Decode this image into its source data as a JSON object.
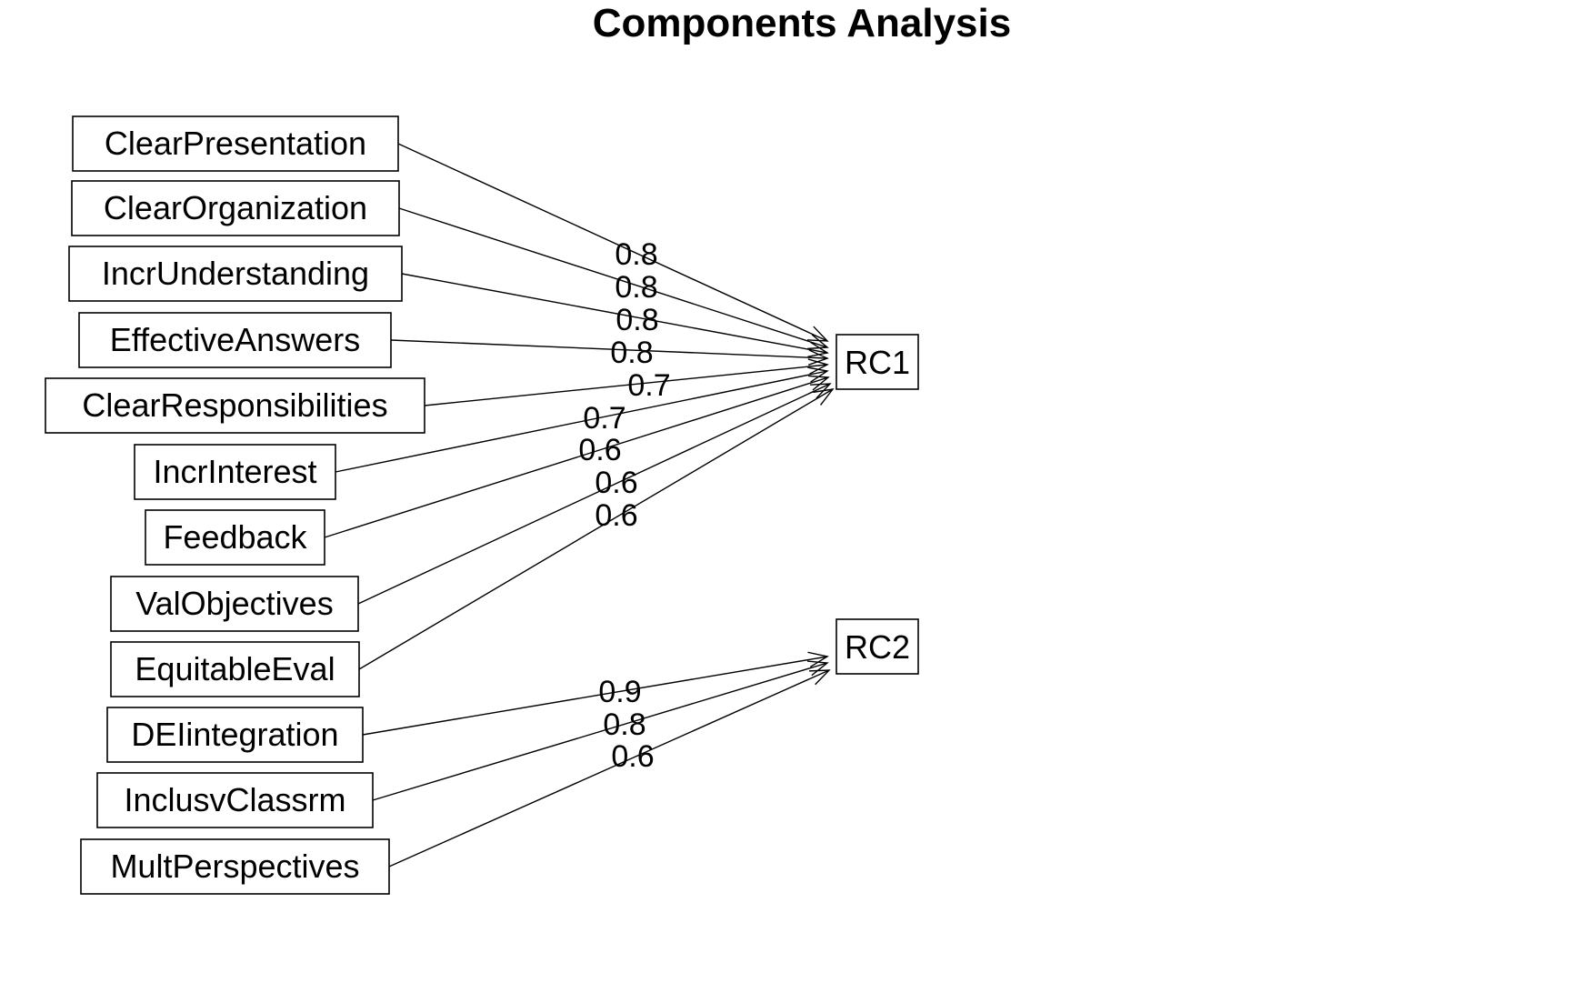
{
  "title": "Components Analysis",
  "colors": {
    "background": "#ffffff",
    "ink": "#000000"
  },
  "components": [
    {
      "id": "RC1",
      "label": "RC1"
    },
    {
      "id": "RC2",
      "label": "RC2"
    }
  ],
  "variables": [
    {
      "id": "ClearPresentation",
      "label": "ClearPresentation"
    },
    {
      "id": "ClearOrganization",
      "label": "ClearOrganization"
    },
    {
      "id": "IncrUnderstanding",
      "label": "IncrUnderstanding"
    },
    {
      "id": "EffectiveAnswers",
      "label": "EffectiveAnswers"
    },
    {
      "id": "ClearResponsibilities",
      "label": "ClearResponsibilities"
    },
    {
      "id": "IncrInterest",
      "label": "IncrInterest"
    },
    {
      "id": "Feedback",
      "label": "Feedback"
    },
    {
      "id": "ValObjectives",
      "label": "ValObjectives"
    },
    {
      "id": "EquitableEval",
      "label": "EquitableEval"
    },
    {
      "id": "DEIintegration",
      "label": "DEIintegration"
    },
    {
      "id": "InclusvClassrm",
      "label": "InclusvClassrm"
    },
    {
      "id": "MultPerspectives",
      "label": "MultPerspectives"
    }
  ],
  "loadings": [
    {
      "from": "ClearPresentation",
      "to": "RC1",
      "value": "0.8"
    },
    {
      "from": "ClearOrganization",
      "to": "RC1",
      "value": "0.8"
    },
    {
      "from": "IncrUnderstanding",
      "to": "RC1",
      "value": "0.8"
    },
    {
      "from": "EffectiveAnswers",
      "to": "RC1",
      "value": "0.8"
    },
    {
      "from": "ClearResponsibilities",
      "to": "RC1",
      "value": "0.7"
    },
    {
      "from": "IncrInterest",
      "to": "RC1",
      "value": "0.7"
    },
    {
      "from": "Feedback",
      "to": "RC1",
      "value": "0.6"
    },
    {
      "from": "ValObjectives",
      "to": "RC1",
      "value": "0.6"
    },
    {
      "from": "EquitableEval",
      "to": "RC1",
      "value": "0.6"
    },
    {
      "from": "DEIintegration",
      "to": "RC2",
      "value": "0.9"
    },
    {
      "from": "InclusvClassrm",
      "to": "RC2",
      "value": "0.8"
    },
    {
      "from": "MultPerspectives",
      "to": "RC2",
      "value": "0.6"
    }
  ]
}
